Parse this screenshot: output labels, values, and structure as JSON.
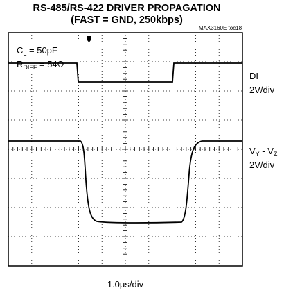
{
  "title": {
    "line1": "RS-485/RS-422 DRIVER PROPAGATION",
    "line2": "(FAST = GND, 250kbps)"
  },
  "figure_id": "MAX3160E toc18",
  "conditions": [
    {
      "main": "C",
      "sub": "L",
      "rest": " = 50pF"
    },
    {
      "main": "R",
      "sub": "DIFF",
      "rest": " = 54Ω"
    }
  ],
  "channels": [
    {
      "parts": [
        {
          "main": "DI"
        }
      ],
      "scale": "2V/div"
    },
    {
      "parts": [
        {
          "main": "V",
          "sub": "Y"
        },
        {
          "main": " - V",
          "sub": "Z"
        }
      ],
      "scale": "2V/div"
    }
  ],
  "timebase": "1.0μs/div"
}
